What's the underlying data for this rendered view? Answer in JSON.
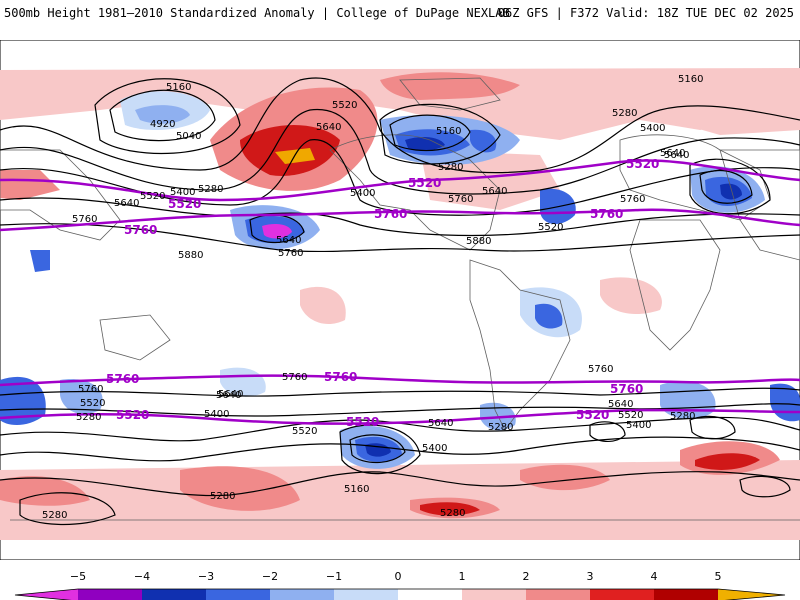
{
  "header": {
    "title": "500mb Height 1981–2010 Standardized Anomaly | College of DuPage NEXLAB",
    "run_info": "06Z GFS | F372 Valid: 18Z TUE DEC 02 2025"
  },
  "map": {
    "contour_labels": {
      "nw_5160": "5160",
      "nw_4920": "4920",
      "nw_5040": "5040",
      "ak_5520": "5520",
      "ak_5640": "5640",
      "ca_5160": "5160",
      "ca_5280": "5280",
      "nat_5160": "5160",
      "nat_5280": "5280",
      "nat_5400": "5400",
      "nat_5640": "5640",
      "pac_5520": "5520",
      "pac_5400": "5400",
      "pac_5280": "5280",
      "pac_5640": "5640",
      "pac_5760": "5760",
      "pac_5640b": "5640",
      "pac_5760b": "5760",
      "pac_5880": "5880",
      "us_5400": "5400",
      "us_5640": "5640",
      "us_5760": "5760",
      "us_5880": "5880",
      "atl_5520": "5520",
      "eu_5640": "5640",
      "eu_5760": "5760",
      "s_5760a": "5760",
      "s_5640a": "5640",
      "s_5520a": "5520",
      "s_5280a": "5280",
      "s_5760b": "5760",
      "s_5640b": "5640",
      "s_5400b": "5400",
      "s_5520b": "5520",
      "s_5400c": "5400",
      "s_5640c": "5640",
      "s_5280c": "5280",
      "s_5760c": "5760",
      "s_5640d": "5640",
      "s_5520d": "5520",
      "s_5400d": "5400",
      "s_5280d": "5280",
      "s_5160": "5160",
      "s_5280e": "5280",
      "s_5280f": "5280",
      "s_5280g": "5280"
    },
    "highlight_labels": {
      "n5520_a": "5520",
      "n5520_b": "5520",
      "n5520_c": "5520",
      "n5760_a": "5760",
      "n5760_b": "5760",
      "n5760_c": "5760",
      "s5760_a": "5760",
      "s5760_b": "5760",
      "s5760_c": "5760",
      "s5520_a": "5520",
      "s5520_b": "5520",
      "s5520_c": "5520"
    },
    "highlight_color": "#a000c8"
  },
  "colorbar": {
    "ticks": [
      "−5",
      "−4",
      "−3",
      "−2",
      "−1",
      "0",
      "1",
      "2",
      "3",
      "4",
      "5"
    ],
    "colors": [
      "#e030e0",
      "#9000c0",
      "#1030b0",
      "#3a66e0",
      "#8fb0f0",
      "#c8dcf8",
      "#ffffff",
      "#f8c8c8",
      "#f08a8a",
      "#e02020",
      "#b00000",
      "#f0b000"
    ]
  }
}
